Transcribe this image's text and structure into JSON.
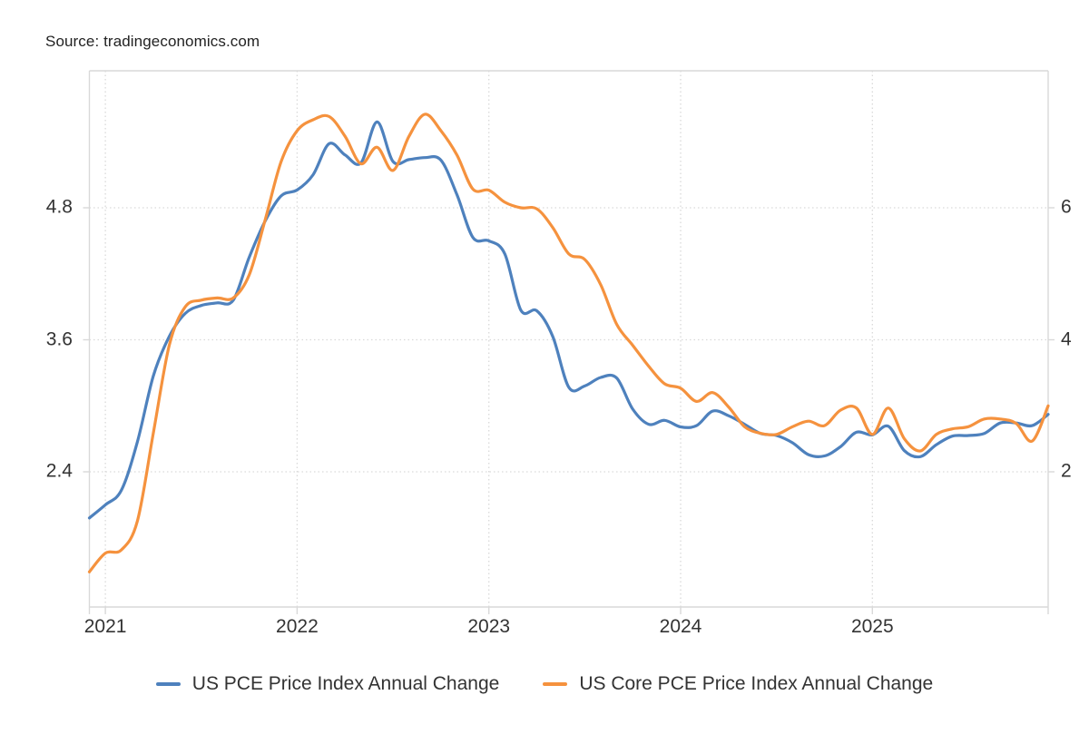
{
  "source": "Source: tradingeconomics.com",
  "colors": {
    "pce_line": "#4e81bd",
    "core_pce_line": "#f5923e",
    "grid": "#d9d9d9",
    "axis_text": "#333333",
    "background": "#ffffff"
  },
  "chart_data": {
    "type": "line",
    "title": "",
    "grid": "dotted",
    "legend_position": "bottom",
    "x_tick_labels": [
      "2021",
      "2022",
      "2023",
      "2024",
      "2025"
    ],
    "left_axis": {
      "ticks": [
        "4.8",
        "3.6",
        "2.4"
      ],
      "tick_values": [
        4.8,
        3.6,
        2.4
      ],
      "side": "left"
    },
    "right_axis": {
      "ticks": [
        "6",
        "4",
        "2"
      ],
      "tick_values": [
        6,
        4,
        2
      ],
      "side": "right"
    },
    "x": [
      "2020-12",
      "2021-01",
      "2021-02",
      "2021-03",
      "2021-04",
      "2021-05",
      "2021-06",
      "2021-07",
      "2021-08",
      "2021-09",
      "2021-10",
      "2021-11",
      "2021-12",
      "2022-01",
      "2022-02",
      "2022-03",
      "2022-04",
      "2022-05",
      "2022-06",
      "2022-07",
      "2022-08",
      "2022-09",
      "2022-10",
      "2022-11",
      "2022-12",
      "2023-01",
      "2023-02",
      "2023-03",
      "2023-04",
      "2023-05",
      "2023-06",
      "2023-07",
      "2023-08",
      "2023-09",
      "2023-10",
      "2023-11",
      "2023-12",
      "2024-01",
      "2024-02",
      "2024-03",
      "2024-04",
      "2024-05",
      "2024-06",
      "2024-07",
      "2024-08",
      "2024-09",
      "2024-10",
      "2024-11",
      "2024-12",
      "2025-01",
      "2025-02",
      "2025-03",
      "2025-04",
      "2025-05",
      "2025-06",
      "2025-07",
      "2025-08",
      "2025-09",
      "2025-10",
      "2025-11",
      "2025-12"
    ],
    "series": [
      {
        "name": "US PCE Price Index Annual Change",
        "axis": "right",
        "color": "#4e81bd",
        "values": [
          1.3,
          1.5,
          1.72,
          2.45,
          3.45,
          4.05,
          4.4,
          4.52,
          4.56,
          4.6,
          5.25,
          5.8,
          6.18,
          6.27,
          6.5,
          6.97,
          6.8,
          6.68,
          7.3,
          6.7,
          6.73,
          6.76,
          6.72,
          6.2,
          5.55,
          5.5,
          5.3,
          4.45,
          4.44,
          4.05,
          3.28,
          3.3,
          3.43,
          3.42,
          2.95,
          2.72,
          2.78,
          2.68,
          2.7,
          2.92,
          2.85,
          2.72,
          2.58,
          2.55,
          2.44,
          2.26,
          2.24,
          2.38,
          2.6,
          2.56,
          2.69,
          2.32,
          2.23,
          2.41,
          2.54,
          2.55,
          2.58,
          2.74,
          2.74,
          2.7,
          2.87
        ]
      },
      {
        "name": "US Core PCE Price Index Annual Change",
        "axis": "left",
        "color": "#f5923e",
        "values": [
          1.49,
          1.66,
          1.69,
          1.95,
          2.75,
          3.55,
          3.9,
          3.96,
          3.98,
          3.98,
          4.19,
          4.69,
          5.22,
          5.5,
          5.6,
          5.63,
          5.45,
          5.2,
          5.35,
          5.14,
          5.45,
          5.65,
          5.5,
          5.28,
          4.97,
          4.96,
          4.85,
          4.8,
          4.79,
          4.62,
          4.38,
          4.33,
          4.1,
          3.74,
          3.55,
          3.36,
          3.2,
          3.16,
          3.04,
          3.12,
          2.99,
          2.81,
          2.75,
          2.74,
          2.81,
          2.86,
          2.82,
          2.96,
          2.98,
          2.74,
          2.98,
          2.7,
          2.59,
          2.74,
          2.79,
          2.81,
          2.88,
          2.88,
          2.84,
          2.68,
          3.0
        ]
      }
    ]
  }
}
